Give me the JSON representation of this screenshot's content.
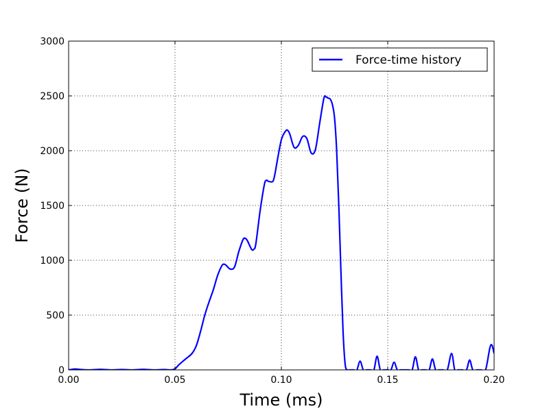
{
  "chart_data": {
    "type": "line",
    "title": "",
    "xlabel": "Time (ms)",
    "ylabel": "Force (N)",
    "xlim": [
      0.0,
      0.2
    ],
    "ylim": [
      0,
      3000
    ],
    "xticks": [
      0.0,
      0.05,
      0.1,
      0.15,
      0.2
    ],
    "xtick_labels": [
      "0.00",
      "0.05",
      "0.10",
      "0.15",
      "0.20"
    ],
    "yticks": [
      0,
      500,
      1000,
      1500,
      2000,
      2500,
      3000
    ],
    "ytick_labels": [
      "0",
      "500",
      "1000",
      "1500",
      "2000",
      "2500",
      "3000"
    ],
    "grid": true,
    "legend_position": "top-right",
    "series": [
      {
        "name": "Force-time history",
        "color": "#0000ff",
        "x": [
          0.0,
          0.003,
          0.006,
          0.01,
          0.015,
          0.02,
          0.025,
          0.03,
          0.035,
          0.04,
          0.045,
          0.048,
          0.05,
          0.052,
          0.055,
          0.058,
          0.06,
          0.062,
          0.064,
          0.066,
          0.068,
          0.07,
          0.072,
          0.073,
          0.074,
          0.076,
          0.078,
          0.08,
          0.082,
          0.083,
          0.084,
          0.086,
          0.087,
          0.088,
          0.09,
          0.092,
          0.093,
          0.094,
          0.096,
          0.097,
          0.098,
          0.1,
          0.102,
          0.103,
          0.104,
          0.106,
          0.108,
          0.11,
          0.112,
          0.114,
          0.116,
          0.118,
          0.12,
          0.121,
          0.122,
          0.123,
          0.124,
          0.125,
          0.126,
          0.127,
          0.128,
          0.129,
          0.13,
          0.131,
          0.132,
          0.133,
          0.134,
          0.1355,
          0.137,
          0.1385,
          0.14,
          0.142,
          0.1435,
          0.145,
          0.1465,
          0.148,
          0.15,
          0.1515,
          0.153,
          0.1545,
          0.156,
          0.158,
          0.16,
          0.1615,
          0.163,
          0.1645,
          0.166,
          0.168,
          0.1695,
          0.171,
          0.1725,
          0.174,
          0.176,
          0.178,
          0.18,
          0.1815,
          0.183,
          0.185,
          0.187,
          0.1885,
          0.19,
          0.192,
          0.194,
          0.196,
          0.198,
          0.199,
          0.2
        ],
        "y": [
          0,
          8,
          3,
          0,
          5,
          0,
          3,
          0,
          5,
          0,
          3,
          0,
          10,
          50,
          100,
          150,
          220,
          350,
          500,
          620,
          730,
          860,
          950,
          965,
          955,
          920,
          940,
          1080,
          1190,
          1200,
          1180,
          1100,
          1100,
          1150,
          1450,
          1690,
          1730,
          1720,
          1720,
          1790,
          1900,
          2100,
          2180,
          2185,
          2150,
          2030,
          2050,
          2130,
          2110,
          1980,
          2010,
          2250,
          2480,
          2490,
          2480,
          2470,
          2420,
          2300,
          2000,
          1500,
          900,
          350,
          50,
          0,
          0,
          0,
          0,
          0,
          80,
          0,
          0,
          0,
          0,
          125,
          0,
          0,
          0,
          0,
          70,
          0,
          0,
          0,
          0,
          0,
          120,
          0,
          0,
          0,
          0,
          100,
          0,
          0,
          0,
          0,
          150,
          0,
          0,
          0,
          0,
          90,
          0,
          0,
          0,
          0,
          200,
          225,
          150
        ]
      }
    ]
  }
}
